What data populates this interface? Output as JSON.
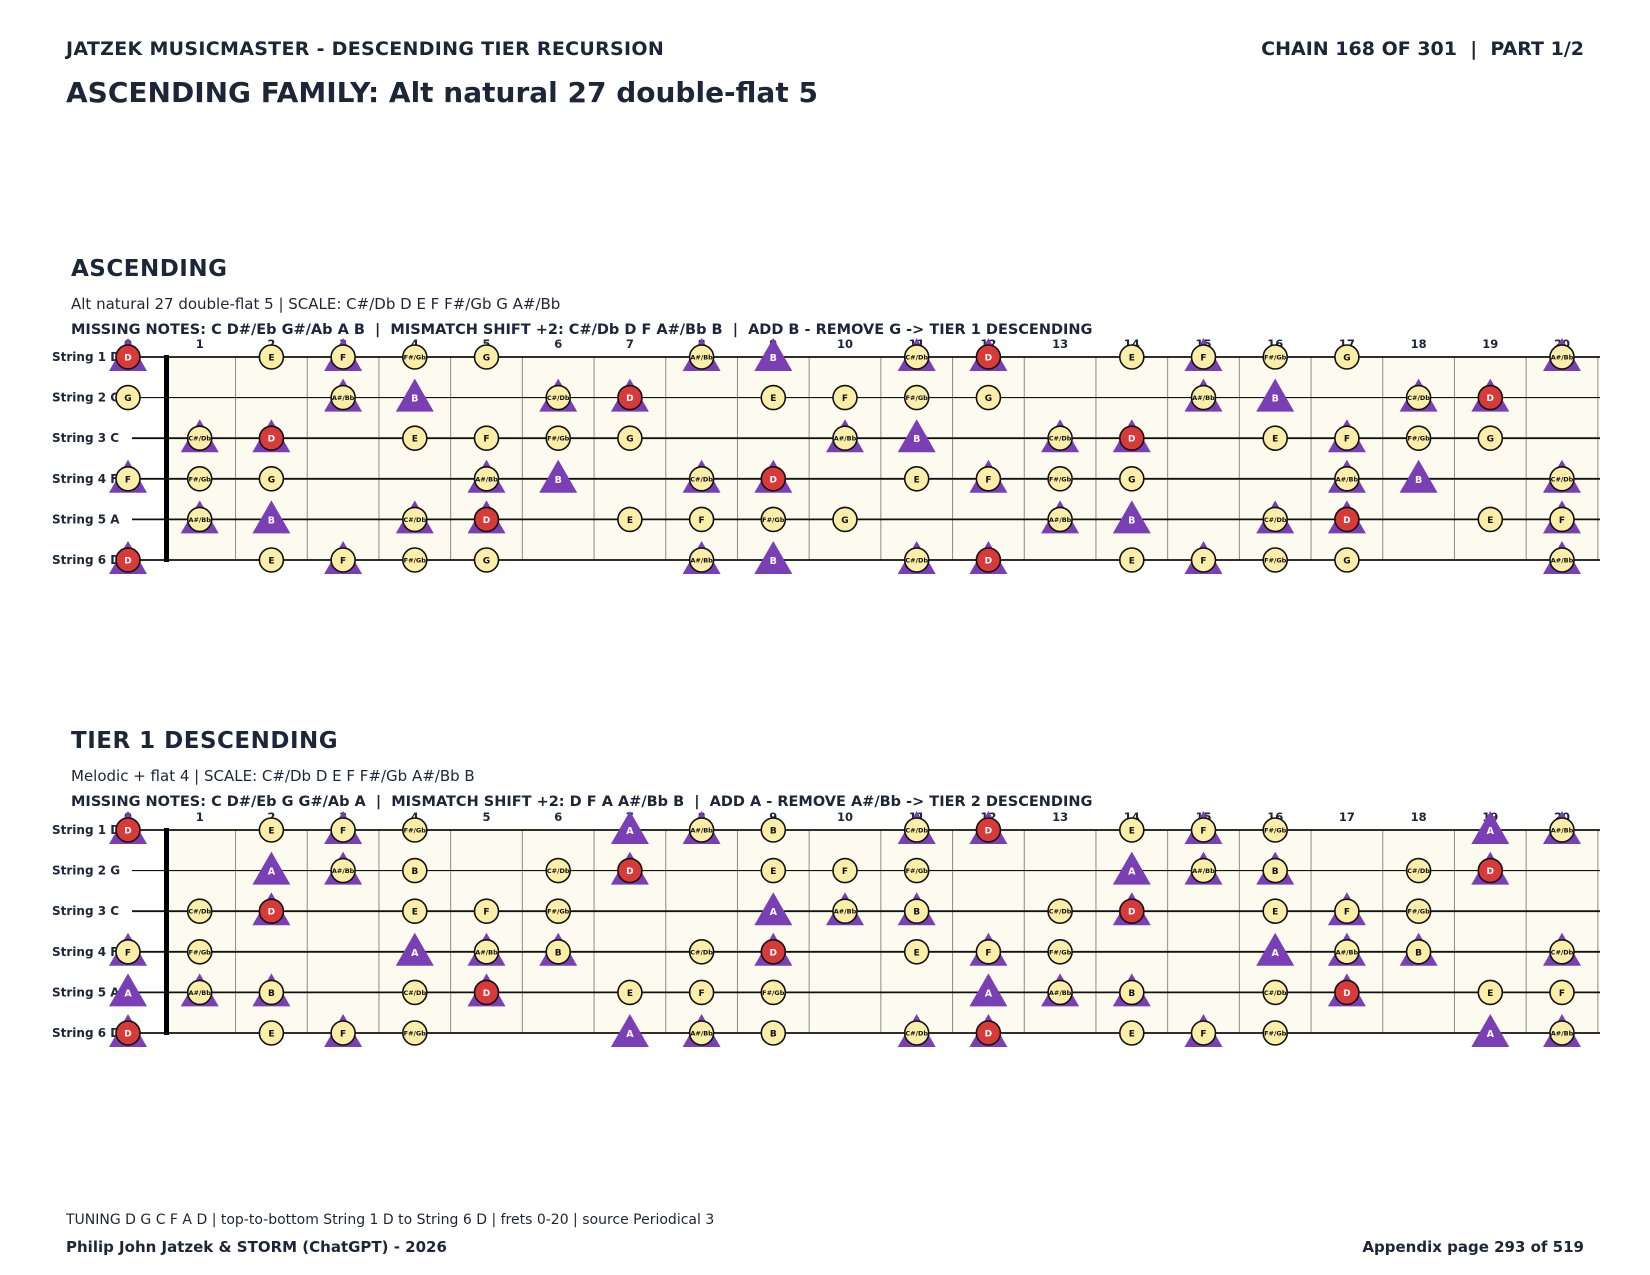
{
  "header": {
    "series": "JATZEK MUSICMASTER - DESCENDING TIER RECURSION",
    "chain": "CHAIN 168 OF 301  |  PART 1/2",
    "title": "ASCENDING FAMILY: Alt natural 27 double-flat 5"
  },
  "colors": {
    "board_fill": "#fdfbef",
    "note_fill": "#fbeea8",
    "root_fill": "#d83a3a",
    "added_fill": "#7b3fb5",
    "text_dark": "#1c2638"
  },
  "legend_icons": {
    "scale_note": "yellow-circle",
    "root_note": "red-circle",
    "added_note": "purple-triangle"
  },
  "strings": [
    "String 1 D",
    "String 2 G",
    "String 3 C",
    "String 4 F",
    "String 5 A",
    "String 6 D"
  ],
  "fret_numbers": [
    "0",
    "1",
    "2",
    "3",
    "4",
    "5",
    "6",
    "7",
    "8",
    "9",
    "10",
    "11",
    "12",
    "13",
    "14",
    "15",
    "16",
    "17",
    "18",
    "19",
    "20"
  ],
  "sections": [
    {
      "title": "ASCENDING",
      "subtitle": "Alt natural 27 double-flat 5  |  SCALE: C#/Db D E F F#/Gb G A#/Bb",
      "missing": "MISSING NOTES: C D#/Eb G#/Ab A B  |  MISMATCH SHIFT +2: C#/Db D F A#/Bb B  |  ADD B - REMOVE G -> TIER 1 DESCENDING",
      "root": "D",
      "added": "B",
      "frets": [
        [
          "D",
          "",
          "E",
          "F",
          "F#/Gb",
          "G",
          "",
          "",
          "A#/Bb",
          "B",
          "",
          "C#/Db",
          "D",
          "",
          "E",
          "F",
          "F#/Gb",
          "G",
          "",
          "",
          "A#/Bb"
        ],
        [
          "G",
          "",
          "",
          "A#/Bb",
          "B",
          "",
          "C#/Db",
          "D",
          "",
          "E",
          "F",
          "F#/Gb",
          "G",
          "",
          "",
          "A#/Bb",
          "B",
          "",
          "C#/Db",
          "D",
          ""
        ],
        [
          "",
          "C#/Db",
          "D",
          "",
          "E",
          "F",
          "F#/Gb",
          "G",
          "",
          "",
          "A#/Bb",
          "B",
          "",
          "C#/Db",
          "D",
          "",
          "E",
          "F",
          "F#/Gb",
          "G",
          ""
        ],
        [
          "F",
          "F#/Gb",
          "G",
          "",
          "",
          "A#/Bb",
          "B",
          "",
          "C#/Db",
          "D",
          "",
          "E",
          "F",
          "F#/Gb",
          "G",
          "",
          "",
          "A#/Bb",
          "B",
          "",
          "C#/Db"
        ],
        [
          "",
          "A#/Bb",
          "B",
          "",
          "C#/Db",
          "D",
          "",
          "E",
          "F",
          "F#/Gb",
          "G",
          "",
          "",
          "A#/Bb",
          "B",
          "",
          "C#/Db",
          "D",
          "",
          "E",
          "F"
        ],
        [
          "D",
          "",
          "E",
          "F",
          "F#/Gb",
          "G",
          "",
          "",
          "A#/Bb",
          "B",
          "",
          "C#/Db",
          "D",
          "",
          "E",
          "F",
          "F#/Gb",
          "G",
          "",
          "",
          "A#/Bb"
        ]
      ],
      "triangles": [
        [
          0,
          3,
          8,
          9,
          11,
          12,
          15,
          20
        ],
        [
          3,
          4,
          6,
          7,
          15,
          16,
          18,
          19
        ],
        [
          1,
          2,
          10,
          11,
          13,
          14,
          17
        ],
        [
          0,
          5,
          6,
          8,
          9,
          12,
          17,
          18,
          20
        ],
        [
          1,
          2,
          4,
          5,
          13,
          14,
          16,
          17,
          20
        ],
        [
          0,
          3,
          8,
          9,
          11,
          12,
          15,
          20
        ]
      ]
    },
    {
      "title": "TIER 1 DESCENDING",
      "subtitle": "Melodic + flat 4  |  SCALE: C#/Db D E F F#/Gb A#/Bb B",
      "missing": "MISSING NOTES: C D#/Eb G G#/Ab A  |  MISMATCH SHIFT +2: D F A A#/Bb B  |  ADD A - REMOVE A#/Bb -> TIER 2 DESCENDING",
      "root": "D",
      "added": "A",
      "frets": [
        [
          "D",
          "",
          "E",
          "F",
          "F#/Gb",
          "",
          "",
          "A",
          "A#/Bb",
          "B",
          "",
          "C#/Db",
          "D",
          "",
          "E",
          "F",
          "F#/Gb",
          "",
          "",
          "A",
          "A#/Bb"
        ],
        [
          "",
          "",
          "A",
          "A#/Bb",
          "B",
          "",
          "C#/Db",
          "D",
          "",
          "E",
          "F",
          "F#/Gb",
          "",
          "",
          "A",
          "A#/Bb",
          "B",
          "",
          "C#/Db",
          "D",
          ""
        ],
        [
          "",
          "C#/Db",
          "D",
          "",
          "E",
          "F",
          "F#/Gb",
          "",
          "",
          "A",
          "A#/Bb",
          "B",
          "",
          "C#/Db",
          "D",
          "",
          "E",
          "F",
          "F#/Gb",
          "",
          ""
        ],
        [
          "F",
          "F#/Gb",
          "",
          "",
          "A",
          "A#/Bb",
          "B",
          "",
          "C#/Db",
          "D",
          "",
          "E",
          "F",
          "F#/Gb",
          "",
          "",
          "A",
          "A#/Bb",
          "B",
          "",
          "C#/Db"
        ],
        [
          "A",
          "A#/Bb",
          "B",
          "",
          "C#/Db",
          "D",
          "",
          "E",
          "F",
          "F#/Gb",
          "",
          "",
          "A",
          "A#/Bb",
          "B",
          "",
          "C#/Db",
          "D",
          "",
          "E",
          "F"
        ],
        [
          "D",
          "",
          "E",
          "F",
          "F#/Gb",
          "",
          "",
          "A",
          "A#/Bb",
          "B",
          "",
          "C#/Db",
          "D",
          "",
          "E",
          "F",
          "F#/Gb",
          "",
          "",
          "A",
          "A#/Bb"
        ]
      ],
      "triangles": [
        [
          0,
          3,
          7,
          8,
          11,
          12,
          15,
          19,
          20
        ],
        [
          2,
          3,
          7,
          14,
          15,
          16,
          19
        ],
        [
          2,
          9,
          10,
          11,
          14,
          17
        ],
        [
          0,
          4,
          5,
          6,
          9,
          12,
          16,
          17,
          18,
          20
        ],
        [
          0,
          1,
          2,
          5,
          12,
          13,
          14,
          17
        ],
        [
          0,
          3,
          7,
          8,
          11,
          12,
          15,
          19,
          20
        ]
      ]
    }
  ],
  "footer": {
    "note": "TUNING D G C F A D | top-to-bottom String 1 D to String 6 D | frets 0-20 | source Periodical 3",
    "credit": "Philip John Jatzek & STORM (ChatGPT) - 2026",
    "page": "Appendix page 293 of 519"
  }
}
